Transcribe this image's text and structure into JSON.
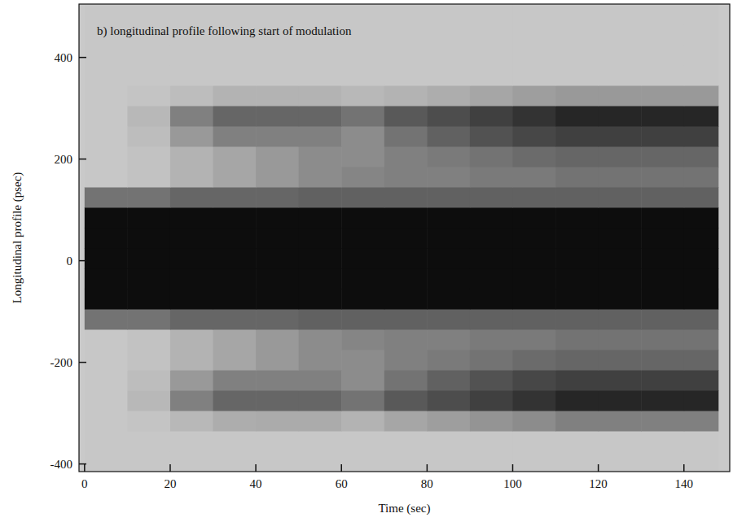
{
  "chart_data": {
    "type": "heatmap",
    "title": "b) longitudinal profile following start of modulation",
    "x_label": "Time (sec)",
    "y_label": "Longitudinal profile (psec)",
    "xlim": [
      -1.3,
      150.7
    ],
    "ylim": [
      -415,
      505
    ],
    "xticks": [
      0,
      20,
      40,
      60,
      80,
      100,
      120,
      140
    ],
    "yticks": [
      -400,
      -200,
      0,
      200,
      400
    ],
    "x_bins": [
      0,
      10,
      20,
      30,
      40,
      50,
      60,
      70,
      80,
      90,
      100,
      110,
      120,
      130,
      140,
      148
    ],
    "y_bins": [
      -415,
      -375,
      -335,
      -295,
      -255,
      -215,
      -175,
      -135,
      -95,
      -55,
      -15,
      25,
      65,
      105,
      145,
      185,
      225,
      265,
      305,
      345,
      385,
      425,
      465,
      505
    ],
    "cells": [
      [
        0.22,
        0.22,
        0.22,
        0.22,
        0.22,
        0.22,
        0.22,
        0.22,
        0.22,
        0.22,
        0.22,
        0.22,
        0.22,
        0.22,
        0.22
      ],
      [
        0.22,
        0.22,
        0.22,
        0.22,
        0.22,
        0.22,
        0.22,
        0.22,
        0.22,
        0.22,
        0.22,
        0.22,
        0.22,
        0.22,
        0.22
      ],
      [
        0.22,
        0.23,
        0.28,
        0.32,
        0.33,
        0.33,
        0.3,
        0.35,
        0.38,
        0.42,
        0.45,
        0.5,
        0.5,
        0.5,
        0.5
      ],
      [
        0.22,
        0.28,
        0.5,
        0.6,
        0.6,
        0.6,
        0.55,
        0.65,
        0.7,
        0.75,
        0.8,
        0.85,
        0.85,
        0.85,
        0.85
      ],
      [
        0.22,
        0.26,
        0.4,
        0.5,
        0.5,
        0.5,
        0.45,
        0.55,
        0.62,
        0.68,
        0.72,
        0.75,
        0.75,
        0.75,
        0.75
      ],
      [
        0.22,
        0.24,
        0.3,
        0.35,
        0.4,
        0.45,
        0.45,
        0.5,
        0.52,
        0.55,
        0.58,
        0.6,
        0.6,
        0.6,
        0.6
      ],
      [
        0.22,
        0.24,
        0.3,
        0.35,
        0.4,
        0.45,
        0.48,
        0.5,
        0.5,
        0.52,
        0.52,
        0.55,
        0.55,
        0.55,
        0.55
      ],
      [
        0.55,
        0.55,
        0.6,
        0.6,
        0.6,
        0.62,
        0.62,
        0.62,
        0.62,
        0.62,
        0.62,
        0.62,
        0.62,
        0.62,
        0.62
      ],
      [
        0.95,
        0.95,
        0.95,
        0.95,
        0.95,
        0.95,
        0.95,
        0.95,
        0.95,
        0.95,
        0.95,
        0.95,
        0.95,
        0.95,
        0.95
      ],
      [
        0.95,
        0.95,
        0.95,
        0.95,
        0.95,
        0.95,
        0.95,
        0.95,
        0.95,
        0.95,
        0.95,
        0.95,
        0.95,
        0.95,
        0.95
      ],
      [
        0.95,
        0.95,
        0.95,
        0.95,
        0.95,
        0.95,
        0.95,
        0.95,
        0.95,
        0.95,
        0.95,
        0.95,
        0.95,
        0.95,
        0.95
      ],
      [
        0.95,
        0.95,
        0.95,
        0.95,
        0.95,
        0.95,
        0.95,
        0.95,
        0.95,
        0.95,
        0.95,
        0.95,
        0.95,
        0.95,
        0.95
      ],
      [
        0.95,
        0.95,
        0.95,
        0.95,
        0.95,
        0.95,
        0.95,
        0.95,
        0.95,
        0.95,
        0.95,
        0.95,
        0.95,
        0.95,
        0.95
      ],
      [
        0.55,
        0.55,
        0.6,
        0.6,
        0.6,
        0.62,
        0.62,
        0.62,
        0.62,
        0.62,
        0.62,
        0.62,
        0.62,
        0.62,
        0.62
      ],
      [
        0.22,
        0.24,
        0.3,
        0.35,
        0.4,
        0.45,
        0.48,
        0.5,
        0.5,
        0.52,
        0.52,
        0.55,
        0.55,
        0.55,
        0.55
      ],
      [
        0.22,
        0.24,
        0.3,
        0.35,
        0.4,
        0.45,
        0.45,
        0.5,
        0.52,
        0.55,
        0.58,
        0.6,
        0.6,
        0.6,
        0.6
      ],
      [
        0.22,
        0.26,
        0.4,
        0.5,
        0.5,
        0.5,
        0.45,
        0.55,
        0.62,
        0.68,
        0.72,
        0.75,
        0.75,
        0.75,
        0.75
      ],
      [
        0.22,
        0.28,
        0.5,
        0.6,
        0.6,
        0.6,
        0.55,
        0.65,
        0.7,
        0.75,
        0.8,
        0.85,
        0.85,
        0.85,
        0.85
      ],
      [
        0.22,
        0.23,
        0.26,
        0.3,
        0.3,
        0.3,
        0.28,
        0.3,
        0.32,
        0.35,
        0.38,
        0.4,
        0.4,
        0.4,
        0.4
      ],
      [
        0.22,
        0.22,
        0.22,
        0.22,
        0.22,
        0.22,
        0.22,
        0.22,
        0.22,
        0.22,
        0.22,
        0.22,
        0.22,
        0.22,
        0.22
      ],
      [
        0.22,
        0.22,
        0.22,
        0.22,
        0.22,
        0.22,
        0.22,
        0.22,
        0.22,
        0.22,
        0.22,
        0.22,
        0.22,
        0.22,
        0.22
      ],
      [
        0.22,
        0.22,
        0.22,
        0.22,
        0.22,
        0.22,
        0.22,
        0.22,
        0.22,
        0.22,
        0.22,
        0.22,
        0.22,
        0.22,
        0.22
      ],
      [
        0.22,
        0.22,
        0.22,
        0.22,
        0.22,
        0.22,
        0.22,
        0.22,
        0.22,
        0.22,
        0.22,
        0.22,
        0.22,
        0.22,
        0.22
      ]
    ]
  }
}
